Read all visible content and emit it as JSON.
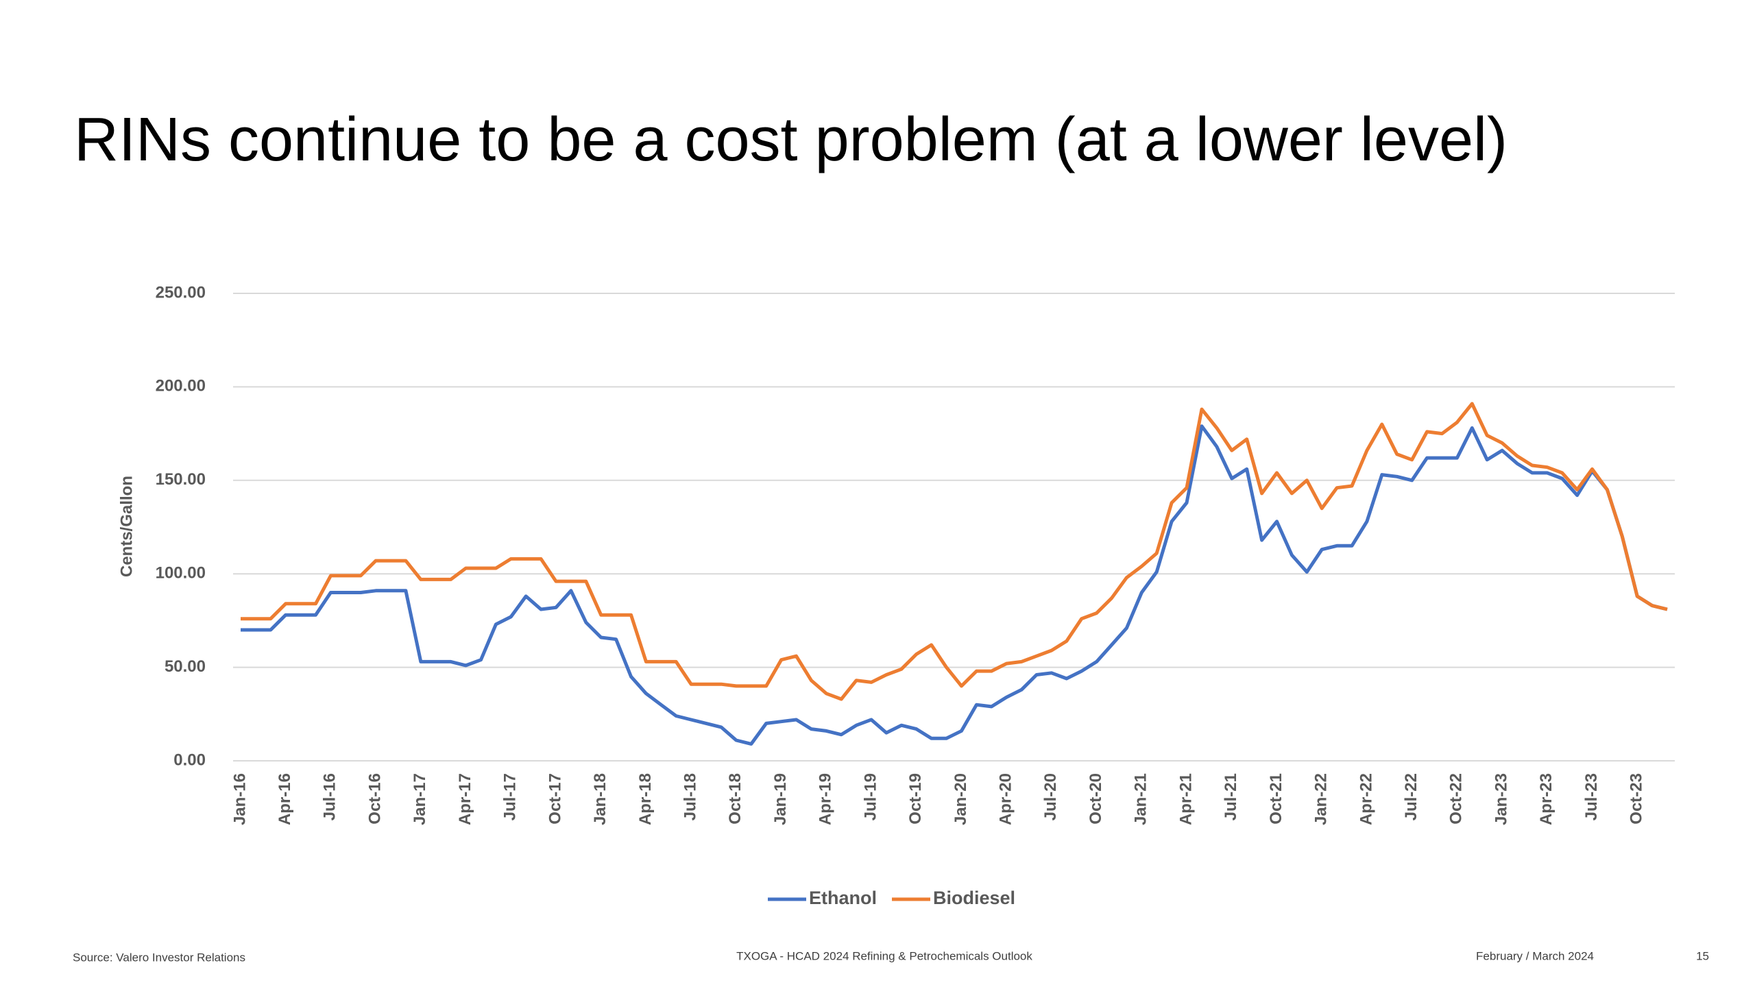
{
  "chart_data": {
    "type": "line",
    "title": "RINs continue to be a cost problem (at a lower level)",
    "y_label": "Cents/Gallon",
    "categories": [
      "Jan-16",
      null,
      null,
      "Apr-16",
      null,
      null,
      "Jul-16",
      null,
      null,
      "Oct-16",
      null,
      null,
      "Jan-17",
      null,
      null,
      "Apr-17",
      null,
      null,
      "Jul-17",
      null,
      null,
      "Oct-17",
      null,
      null,
      "Jan-18",
      null,
      null,
      "Apr-18",
      null,
      null,
      "Jul-18",
      null,
      null,
      "Oct-18",
      null,
      null,
      "Jan-19",
      null,
      null,
      "Apr-19",
      null,
      null,
      "Jul-19",
      null,
      null,
      "Oct-19",
      null,
      null,
      "Jan-20",
      null,
      null,
      "Apr-20",
      null,
      null,
      "Jul-20",
      null,
      null,
      "Oct-20",
      null,
      null,
      "Jan-21",
      null,
      null,
      "Apr-21",
      null,
      null,
      "Jul-21",
      null,
      null,
      "Oct-21",
      null,
      null,
      "Jan-22",
      null,
      null,
      "Apr-22",
      null,
      null,
      "Jul-22",
      null,
      null,
      "Oct-22",
      null,
      null,
      "Jan-23",
      null,
      null,
      "Apr-23",
      null,
      null,
      "Jul-23",
      null,
      null,
      "Oct-23",
      null,
      null
    ],
    "series": [
      {
        "name": "Ethanol",
        "color": "#4472c4",
        "values": [
          70,
          70,
          70,
          78,
          78,
          78,
          90,
          90,
          90,
          91,
          91,
          91,
          53,
          53,
          53,
          51,
          54,
          73,
          77,
          88,
          81,
          82,
          91,
          74,
          66,
          65,
          45,
          36,
          30,
          24,
          22,
          20,
          18,
          11,
          9,
          20,
          21,
          22,
          17,
          16,
          14,
          19,
          22,
          15,
          19,
          17,
          12,
          12,
          16,
          30,
          29,
          34,
          38,
          46,
          47,
          44,
          48,
          53,
          62,
          71,
          90,
          101,
          128,
          138,
          179,
          168,
          151,
          156,
          118,
          128,
          110,
          101,
          113,
          115,
          115,
          128,
          153,
          152,
          150,
          162,
          162,
          162,
          178,
          161,
          166,
          159,
          154,
          154,
          151,
          142,
          155,
          145,
          120,
          88,
          83,
          81
        ]
      },
      {
        "name": "Biodiesel",
        "color": "#ed7d31",
        "values": [
          76,
          76,
          76,
          84,
          84,
          84,
          99,
          99,
          99,
          107,
          107,
          107,
          97,
          97,
          97,
          103,
          103,
          103,
          108,
          108,
          108,
          96,
          96,
          96,
          78,
          78,
          78,
          53,
          53,
          53,
          41,
          41,
          41,
          40,
          40,
          40,
          54,
          56,
          43,
          36,
          33,
          43,
          42,
          46,
          49,
          57,
          62,
          50,
          40,
          48,
          48,
          52,
          53,
          56,
          59,
          64,
          76,
          79,
          87,
          98,
          104,
          111,
          138,
          146,
          188,
          178,
          166,
          172,
          143,
          154,
          143,
          150,
          135,
          146,
          147,
          166,
          180,
          164,
          161,
          176,
          175,
          181,
          191,
          174,
          170,
          163,
          158,
          157,
          154,
          145,
          156,
          145,
          120,
          88,
          83,
          81
        ]
      }
    ],
    "ylim": [
      0,
      250
    ],
    "yticks": [
      {
        "value": 0,
        "label": "0.00"
      },
      {
        "value": 50,
        "label": "50.00"
      },
      {
        "value": 100,
        "label": "100.00"
      },
      {
        "value": 150,
        "label": "150.00"
      },
      {
        "value": 200,
        "label": "200.00"
      },
      {
        "value": 250,
        "label": "250.00"
      }
    ],
    "grid": true,
    "legend": "bottom"
  },
  "footer": {
    "source": "Source: Valero Investor Relations",
    "event": "TXOGA - HCAD 2024 Refining & Petrochemicals Outlook",
    "date": "February / March 2024",
    "page": "15"
  }
}
